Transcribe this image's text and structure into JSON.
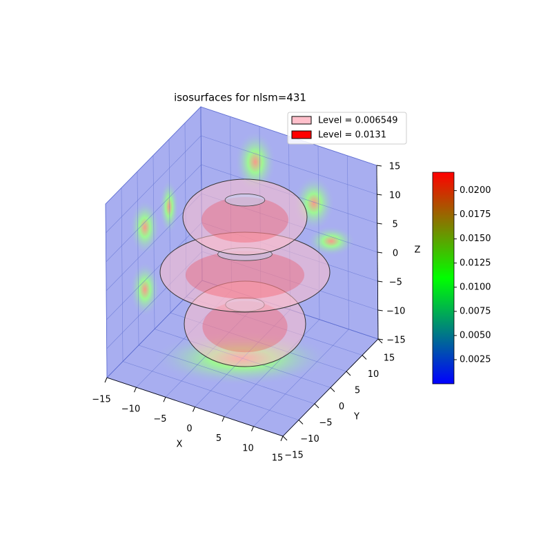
{
  "chart_data": {
    "type": "isosurface3d",
    "title": "isosurfaces for nlsm=431",
    "xlabel": "X",
    "ylabel": "Y",
    "zlabel": "Z",
    "xlim": [
      -15,
      15
    ],
    "ylim": [
      -15,
      15
    ],
    "zlim": [
      -15,
      15
    ],
    "xticks": [
      {
        "value": -15,
        "label": "−15"
      },
      {
        "value": -10,
        "label": "−10"
      },
      {
        "value": -5,
        "label": "−5"
      },
      0,
      5,
      10,
      15
    ],
    "yticks": [
      {
        "value": -15,
        "label": "−15"
      },
      {
        "value": -10,
        "label": "−10"
      },
      {
        "value": -5,
        "label": "−5"
      },
      0,
      5,
      10,
      15
    ],
    "zticks": [
      {
        "value": -15,
        "label": "−15"
      },
      {
        "value": -10,
        "label": "−10"
      },
      {
        "value": -5,
        "label": "−5"
      },
      0,
      5,
      10,
      15
    ],
    "grid": true,
    "series": [
      {
        "name": "Level = 0.006549",
        "color": "#ffc0cb"
      },
      {
        "name": "Level = 0.0131",
        "color": "#ff0000"
      }
    ],
    "legend": "upper right",
    "colorbar": {
      "clim": [
        0,
        0.0219
      ],
      "colors": [
        "#0000ff",
        "#00ff00",
        "#ff0000"
      ],
      "ticks": [
        0.0025,
        {
          "value": 0.005,
          "label": "0.0050"
        },
        0.0075,
        {
          "value": 0.01,
          "label": "0.0100"
        },
        0.0125,
        {
          "value": 0.015,
          "label": "0.0150"
        },
        0.0175,
        {
          "value": 0.02,
          "label": "0.0200"
        }
      ]
    }
  }
}
